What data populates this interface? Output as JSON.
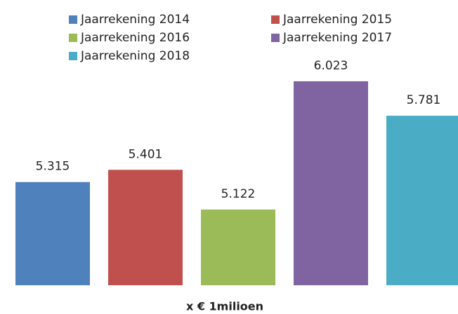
{
  "chart_data": {
    "type": "bar",
    "xlabel": "x € 1milioen",
    "categories": [
      null
    ],
    "series": [
      {
        "name": "Jaarrekening 2014",
        "color": "#4f81bd",
        "values": [
          5.315
        ]
      },
      {
        "name": "Jaarrekening 2015",
        "color": "#c0504d",
        "values": [
          5.401
        ]
      },
      {
        "name": "Jaarrekening 2016",
        "color": "#9bbb59",
        "values": [
          5.122
        ]
      },
      {
        "name": "Jaarrekening 2017",
        "color": "#8064a2",
        "values": [
          6.023
        ]
      },
      {
        "name": "Jaarrekening 2018",
        "color": "#4bacc6",
        "values": [
          5.781
        ]
      }
    ],
    "ylim": [
      4.59,
      6.2
    ],
    "legend": "top"
  }
}
